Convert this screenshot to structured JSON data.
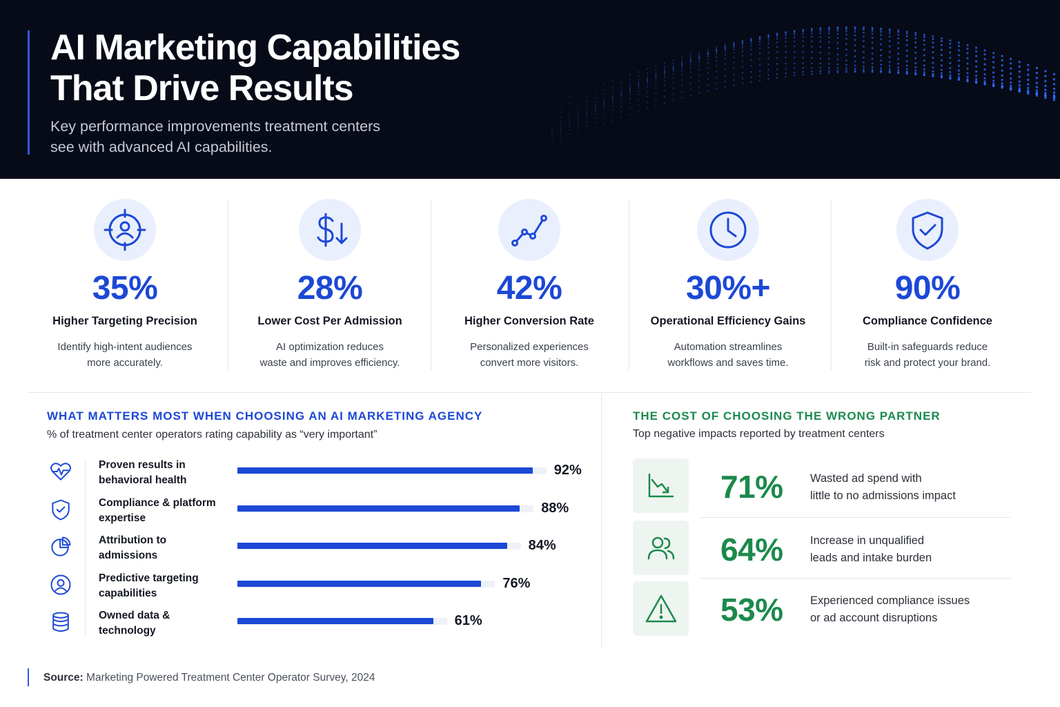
{
  "hero": {
    "title_line1": "AI Marketing Capabilities",
    "title_line2": "That Drive Results",
    "subtitle_line1": "Key performance improvements treatment centers",
    "subtitle_line2": "see with advanced AI capabilities."
  },
  "kpis": [
    {
      "icon": "target-person-icon",
      "value": "35%",
      "label": "Higher Targeting Precision",
      "desc_line1": "Identify high-intent audiences",
      "desc_line2": "more accurately."
    },
    {
      "icon": "dollar-down-icon",
      "value": "28%",
      "label": "Lower Cost Per Admission",
      "desc_line1": "AI optimization reduces",
      "desc_line2": "waste and improves efficiency."
    },
    {
      "icon": "trend-line-icon",
      "value": "42%",
      "label": "Higher Conversion Rate",
      "desc_line1": "Personalized experiences",
      "desc_line2": "convert more visitors."
    },
    {
      "icon": "clock-icon",
      "value": "30%+",
      "label": "Operational Efficiency Gains",
      "desc_line1": "Automation streamlines",
      "desc_line2": "workflows and saves time."
    },
    {
      "icon": "shield-check-icon",
      "value": "90%",
      "label": "Compliance Confidence",
      "desc_line1": "Built-in safeguards reduce",
      "desc_line2": "risk and protect your brand."
    }
  ],
  "chart_data": {
    "type": "bar",
    "orientation": "horizontal",
    "title": "WHAT MATTERS MOST WHEN CHOOSING AN AI MARKETING AGENCY",
    "subtitle": "% of treatment center operators rating capability as “very important”",
    "categories": [
      {
        "line1": "Proven results in",
        "line2": "behavioral health"
      },
      {
        "line1": "Compliance & platform",
        "line2": "expertise"
      },
      {
        "line1": "Attribution to",
        "line2": "admissions"
      },
      {
        "line1": "Predictive targeting",
        "line2": "capabilities"
      },
      {
        "line1": "Owned data &",
        "line2": "technology"
      }
    ],
    "icons": [
      "heart-pulse-icon",
      "shield-check-icon",
      "pie-chart-icon",
      "user-circle-icon",
      "database-icon"
    ],
    "values": [
      92,
      88,
      84,
      76,
      61
    ],
    "value_labels": [
      "92%",
      "88%",
      "84%",
      "76%",
      "61%"
    ],
    "ylim": [
      0,
      100
    ],
    "bar_color": "#1c48d6",
    "grid": false
  },
  "impacts": {
    "title": "THE COST OF CHOOSING THE WRONG PARTNER",
    "subtitle": "Top negative impacts reported by treatment centers",
    "items": [
      {
        "icon": "chart-down-icon",
        "value": "71%",
        "desc_line1": "Wasted ad spend with",
        "desc_line2": "little to no admissions impact"
      },
      {
        "icon": "users-icon",
        "value": "64%",
        "desc_line1": "Increase in unqualified",
        "desc_line2": "leads and intake burden"
      },
      {
        "icon": "warning-icon",
        "value": "53%",
        "desc_line1": "Experienced compliance issues",
        "desc_line2": "or ad account disruptions"
      }
    ]
  },
  "source": {
    "label": "Source:",
    "text": "Marketing Powered Treatment Center Operator Survey, 2024"
  },
  "colors": {
    "accent_blue": "#1c48d6",
    "accent_green": "#1b8a4c",
    "hero_bg": "#070b18"
  }
}
